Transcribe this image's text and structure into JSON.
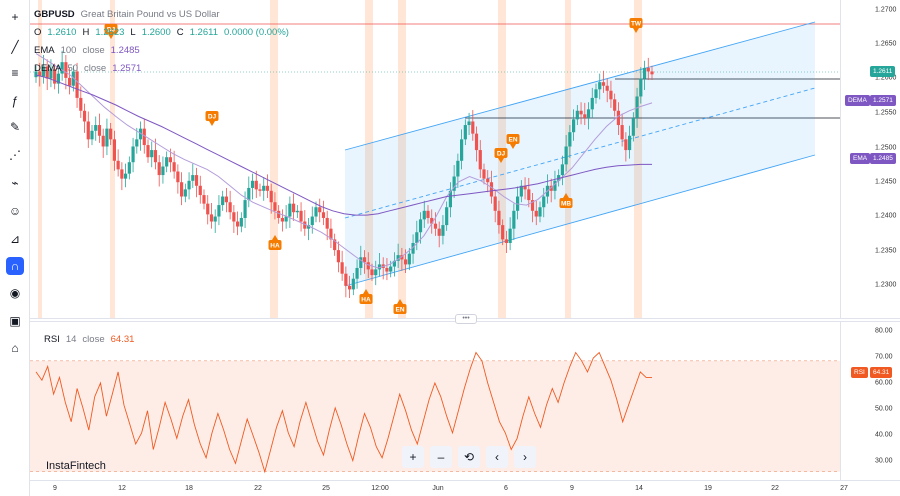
{
  "symbol": {
    "ticker": "GBPUSD",
    "description": "Great Britain Pound vs US Dollar"
  },
  "ohlc": {
    "o_label": "O",
    "o": "1.2610",
    "h_label": "H",
    "h": "1.2623",
    "l_label": "L",
    "l": "1.2600",
    "c_label": "C",
    "c": "1.2611",
    "change": "0.0000 (0.00%)"
  },
  "indicators": {
    "ema": {
      "name": "EMA",
      "period": "100",
      "source": "close",
      "value": "1.2485"
    },
    "dema": {
      "name": "DEMA",
      "period": "50",
      "source": "close",
      "value": "1.2571"
    },
    "rsi": {
      "name": "RSI",
      "period": "14",
      "source": "close",
      "value": "64.31"
    }
  },
  "price_axis": {
    "ticks": [
      "1.2700",
      "1.2650",
      "1.2600",
      "1.2550",
      "1.2500",
      "1.2450",
      "1.2400",
      "1.2350",
      "1.2300"
    ],
    "badges": {
      "last": "1.2611",
      "dema_label": "DEMA",
      "dema_value": "1.2571",
      "ema_label": "EMA",
      "ema_value": "1.2485"
    }
  },
  "rsi_axis": {
    "ticks": [
      "80.00",
      "70.00",
      "60.00",
      "50.00",
      "40.00",
      "30.00"
    ],
    "badge_label": "RSI",
    "badge_value": "64.31"
  },
  "time_axis": {
    "labels": [
      "9",
      "12",
      "18",
      "22",
      "25",
      "12:00",
      "Jun",
      "6",
      "9",
      "14",
      "19",
      "22",
      "27"
    ]
  },
  "annotations": [
    "DJ",
    "DJ",
    "HA",
    "HA",
    "EN",
    "DJ",
    "EN",
    "MB",
    "TW"
  ],
  "toolbar": {
    "icons": [
      "crosshair-icon",
      "trend-line-icon",
      "fib-icon",
      "brush-icon",
      "text-icon",
      "pattern-icon",
      "prediction-icon",
      "emoji-icon",
      "ruler-icon",
      "magnet-icon",
      "eye-icon",
      "lock-icon",
      "home-icon"
    ]
  },
  "controls": [
    "+",
    "–",
    "⟲",
    "‹",
    "›"
  ],
  "brand": "InstaFintech",
  "colors": {
    "up": "#26a69a",
    "down": "#ef5350",
    "channel": "#42a5f5",
    "dema": "#b39ddb",
    "ema": "#7e57c2",
    "rsi": "#f05a22",
    "annotation": "#f57c00",
    "highlight": "#ffe0cc"
  },
  "chart_data": {
    "type": "candlestick",
    "price_range": [
      1.227,
      1.2715
    ],
    "closes": [
      1.2615,
      1.2608,
      1.2622,
      1.2605,
      1.2618,
      1.2598,
      1.2612,
      1.2628,
      1.2606,
      1.2595,
      1.2615,
      1.2578,
      1.256,
      1.2545,
      1.252,
      1.2532,
      1.254,
      1.2525,
      1.251,
      1.2535,
      1.252,
      1.249,
      1.2478,
      1.2465,
      1.2472,
      1.2488,
      1.251,
      1.252,
      1.2535,
      1.2512,
      1.2495,
      1.2505,
      1.2488,
      1.247,
      1.2482,
      1.2495,
      1.2488,
      1.2475,
      1.246,
      1.244,
      1.245,
      1.2462,
      1.247,
      1.2455,
      1.2442,
      1.243,
      1.2415,
      1.2405,
      1.2412,
      1.2428,
      1.244,
      1.2432,
      1.2418,
      1.2405,
      1.2398,
      1.241,
      1.2435,
      1.2452,
      1.2462,
      1.245,
      1.2448,
      1.2455,
      1.2448,
      1.2432,
      1.242,
      1.241,
      1.2405,
      1.2412,
      1.243,
      1.2418,
      1.242,
      1.2405,
      1.2395,
      1.24,
      1.2412,
      1.2425,
      1.2418,
      1.241,
      1.2395,
      1.238,
      1.2365,
      1.2348,
      1.2332,
      1.2315,
      1.231,
      1.2325,
      1.234,
      1.2355,
      1.2348,
      1.2338,
      1.233,
      1.2338,
      1.2345,
      1.234,
      1.2335,
      1.2342,
      1.235,
      1.2358,
      1.2352,
      1.2345,
      1.236,
      1.2375,
      1.239,
      1.2408,
      1.242,
      1.241,
      1.2402,
      1.2395,
      1.2385,
      1.24,
      1.2425,
      1.2448,
      1.2468,
      1.249,
      1.252,
      1.254,
      1.2545,
      1.2528,
      1.2505,
      1.2478,
      1.2465,
      1.246,
      1.244,
      1.242,
      1.24,
      1.238,
      1.2375,
      1.2395,
      1.242,
      1.244,
      1.2455,
      1.245,
      1.2435,
      1.242,
      1.2412,
      1.2425,
      1.244,
      1.2455,
      1.2448,
      1.2462,
      1.247,
      1.2485,
      1.251,
      1.253,
      1.2548,
      1.256,
      1.2555,
      1.255,
      1.2562,
      1.2578,
      1.259,
      1.26,
      1.2595,
      1.2588,
      1.2576,
      1.256,
      1.254,
      1.252,
      1.2505,
      1.2525,
      1.255,
      1.258,
      1.2605,
      1.262,
      1.2615,
      1.2611
    ],
    "dema": [
      1.264,
      1.263,
      1.262,
      1.261,
      1.2595,
      1.258,
      1.2565,
      1.2552,
      1.254,
      1.253,
      1.252,
      1.251,
      1.25,
      1.2492,
      1.2485,
      1.2478,
      1.2468,
      1.2455,
      1.2442,
      1.2432,
      1.2425,
      1.2418,
      1.2412,
      1.2405,
      1.2398,
      1.239,
      1.238,
      1.2368,
      1.2356,
      1.2345,
      1.234,
      1.2345,
      1.2355,
      1.2368,
      1.2385,
      1.241,
      1.244,
      1.246,
      1.2468,
      1.2462,
      1.2452,
      1.244,
      1.243,
      1.2428,
      1.2436,
      1.245,
      1.2465,
      1.248,
      1.25,
      1.252,
      1.2538,
      1.2552,
      1.256,
      1.2566,
      1.2571
    ],
    "ema": [
      1.261,
      1.2606,
      1.26,
      1.2594,
      1.2588,
      1.2582,
      1.2575,
      1.2568,
      1.256,
      1.2552,
      1.2545,
      1.2538,
      1.253,
      1.2522,
      1.2514,
      1.2506,
      1.2498,
      1.249,
      1.2482,
      1.2474,
      1.2466,
      1.2458,
      1.245,
      1.2442,
      1.2434,
      1.2426,
      1.242,
      1.2416,
      1.2414,
      1.2414,
      1.2416,
      1.242,
      1.2424,
      1.2428,
      1.2432,
      1.2436,
      1.244,
      1.2442,
      1.2444,
      1.2446,
      1.2448,
      1.245,
      1.2452,
      1.2455,
      1.2458,
      1.2462,
      1.2466,
      1.247,
      1.2474,
      1.2478,
      1.2481,
      1.2483,
      1.2484,
      1.2485,
      1.2485
    ],
    "rsi_range": [
      27,
      84
    ],
    "rsi": [
      66,
      63,
      68,
      58,
      64,
      55,
      48,
      60,
      53,
      45,
      57,
      62,
      50,
      58,
      66,
      54,
      47,
      40,
      44,
      52,
      38,
      46,
      55,
      49,
      42,
      50,
      56,
      47,
      40,
      35,
      44,
      51,
      45,
      38,
      33,
      41,
      49,
      43,
      37,
      30,
      38,
      46,
      52,
      44,
      39,
      48,
      55,
      48,
      41,
      36,
      45,
      53,
      47,
      40,
      34,
      43,
      51,
      46,
      39,
      35,
      42,
      50,
      58,
      52,
      45,
      40,
      48,
      56,
      62,
      57,
      50,
      44,
      52,
      60,
      67,
      73,
      70,
      62,
      55,
      48,
      44,
      38,
      42,
      50,
      57,
      51,
      46,
      54,
      60,
      55,
      62,
      68,
      73,
      70,
      66,
      71,
      73,
      68,
      63,
      56,
      48,
      54,
      60,
      66,
      64,
      64
    ]
  }
}
